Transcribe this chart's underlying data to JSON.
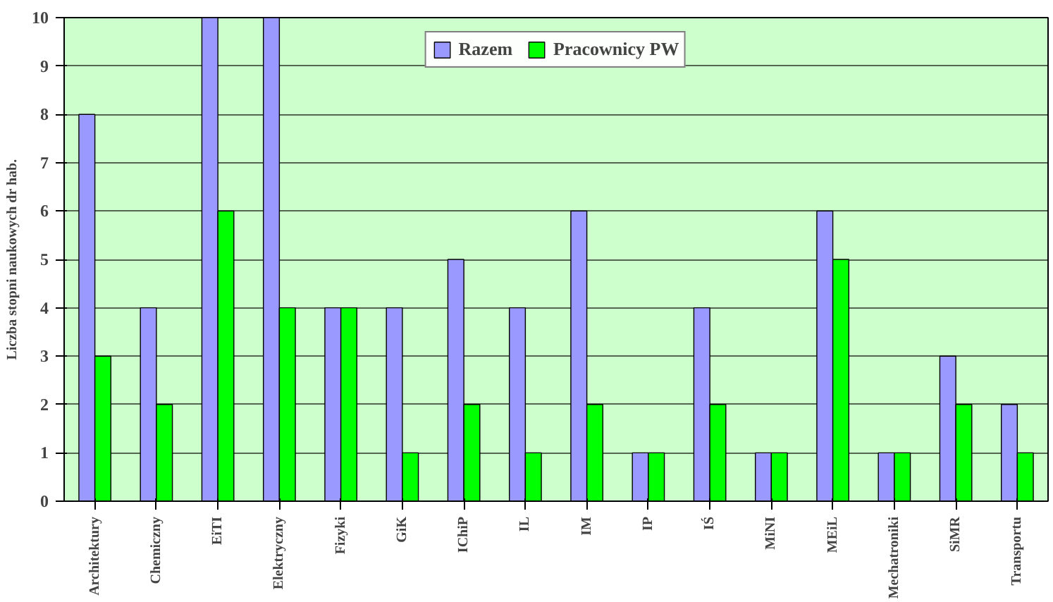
{
  "chart_data": {
    "type": "bar",
    "ylabel": "Liczba stopni naukowych dr hab.",
    "categories": [
      "Architektury",
      "Chemiczny",
      "EiTI",
      "Elektryczny",
      "Fizyki",
      "GiK",
      "IChiP",
      "IL",
      "IM",
      "IP",
      "IŚ",
      "MiNI",
      "MEiL",
      "Mechatroniki",
      "SiMR",
      "Transportu"
    ],
    "series": [
      {
        "name": "Razem",
        "color": "#9999ff",
        "values": [
          8,
          4,
          10,
          10,
          4,
          4,
          5,
          4,
          6,
          1,
          4,
          1,
          6,
          1,
          3,
          2
        ]
      },
      {
        "name": "Pracownicy PW",
        "color": "#00ff00",
        "values": [
          3,
          2,
          6,
          4,
          4,
          1,
          2,
          1,
          2,
          1,
          2,
          1,
          5,
          1,
          2,
          1
        ]
      }
    ],
    "ylim": [
      0,
      10
    ],
    "yticks": [
      0,
      1,
      2,
      3,
      4,
      5,
      6,
      7,
      8,
      9,
      10
    ],
    "grid": "y",
    "legend": "top"
  }
}
